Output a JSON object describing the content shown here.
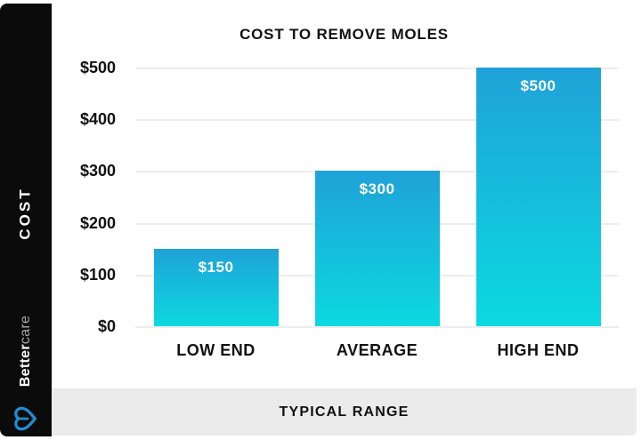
{
  "brand": {
    "name_bold": "Better",
    "name_light": "care",
    "logo_icon": "heart-logo-icon",
    "logo_color": "#1f8ed2"
  },
  "chart_data": {
    "type": "bar",
    "title": "COST TO REMOVE MOLES",
    "categories": [
      "LOW END",
      "AVERAGE",
      "HIGH END"
    ],
    "values": [
      150,
      300,
      500
    ],
    "bar_labels": [
      "$150",
      "$300",
      "$500"
    ],
    "yticks": [
      "$500",
      "$400",
      "$300",
      "$200",
      "$100",
      "$0"
    ],
    "ylim": [
      0,
      500
    ],
    "ylabel": "COST",
    "xlabel": "TYPICAL RANGE",
    "grid": "horizontal",
    "legend": "none",
    "bar_color_top": "#1fa2d8",
    "bar_color_bottom": "#0cd9e0",
    "bar_value_text_color": "#ffffff"
  },
  "colors": {
    "sidebar_bg": "#0b0b0b",
    "footer_bg": "#ebebeb",
    "gridline": "#ededed",
    "text": "#111111"
  }
}
